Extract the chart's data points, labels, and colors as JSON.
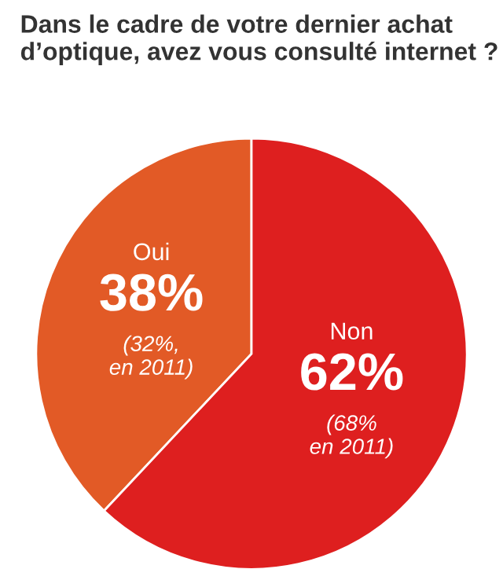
{
  "chart_data": {
    "type": "pie",
    "title": "Dans le cadre de votre dernier achat d’optique, avez vous consulté internet ?",
    "categories": [
      "Oui",
      "Non"
    ],
    "values": [
      38,
      62
    ],
    "colors": [
      "#e25a26",
      "#de1f1f"
    ],
    "value_labels": [
      "38%",
      "62%"
    ],
    "annotations": [
      "(32%,\nen 2011)",
      "(68%\nen 2011)"
    ]
  }
}
